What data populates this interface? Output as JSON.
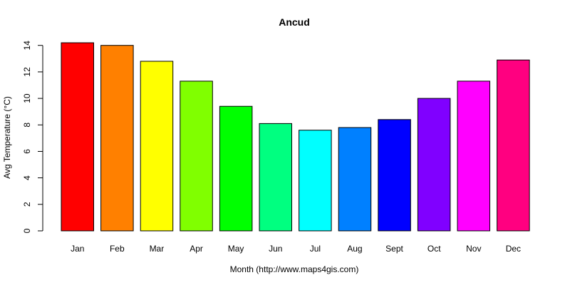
{
  "chart_data": {
    "type": "bar",
    "title": "Ancud",
    "xlabel": "Month (http://www.maps4gis.com)",
    "ylabel": "Avg Temperature (°C)",
    "categories": [
      "Jan",
      "Feb",
      "Mar",
      "Apr",
      "May",
      "Jun",
      "Jul",
      "Aug",
      "Sept",
      "Oct",
      "Nov",
      "Dec"
    ],
    "values": [
      14.2,
      14.0,
      12.8,
      11.3,
      9.4,
      8.1,
      7.6,
      7.8,
      8.4,
      10.0,
      11.3,
      12.9
    ],
    "colors": [
      "#FF0000",
      "#FF8000",
      "#FFFF00",
      "#80FF00",
      "#00FF00",
      "#00FF80",
      "#00FFFF",
      "#0080FF",
      "#0000FF",
      "#8000FF",
      "#FF00FF",
      "#FF0080"
    ],
    "yticks": [
      0,
      2,
      4,
      6,
      8,
      10,
      12,
      14
    ],
    "ylim": [
      0,
      14.2
    ],
    "grid": false,
    "legend": "none"
  }
}
